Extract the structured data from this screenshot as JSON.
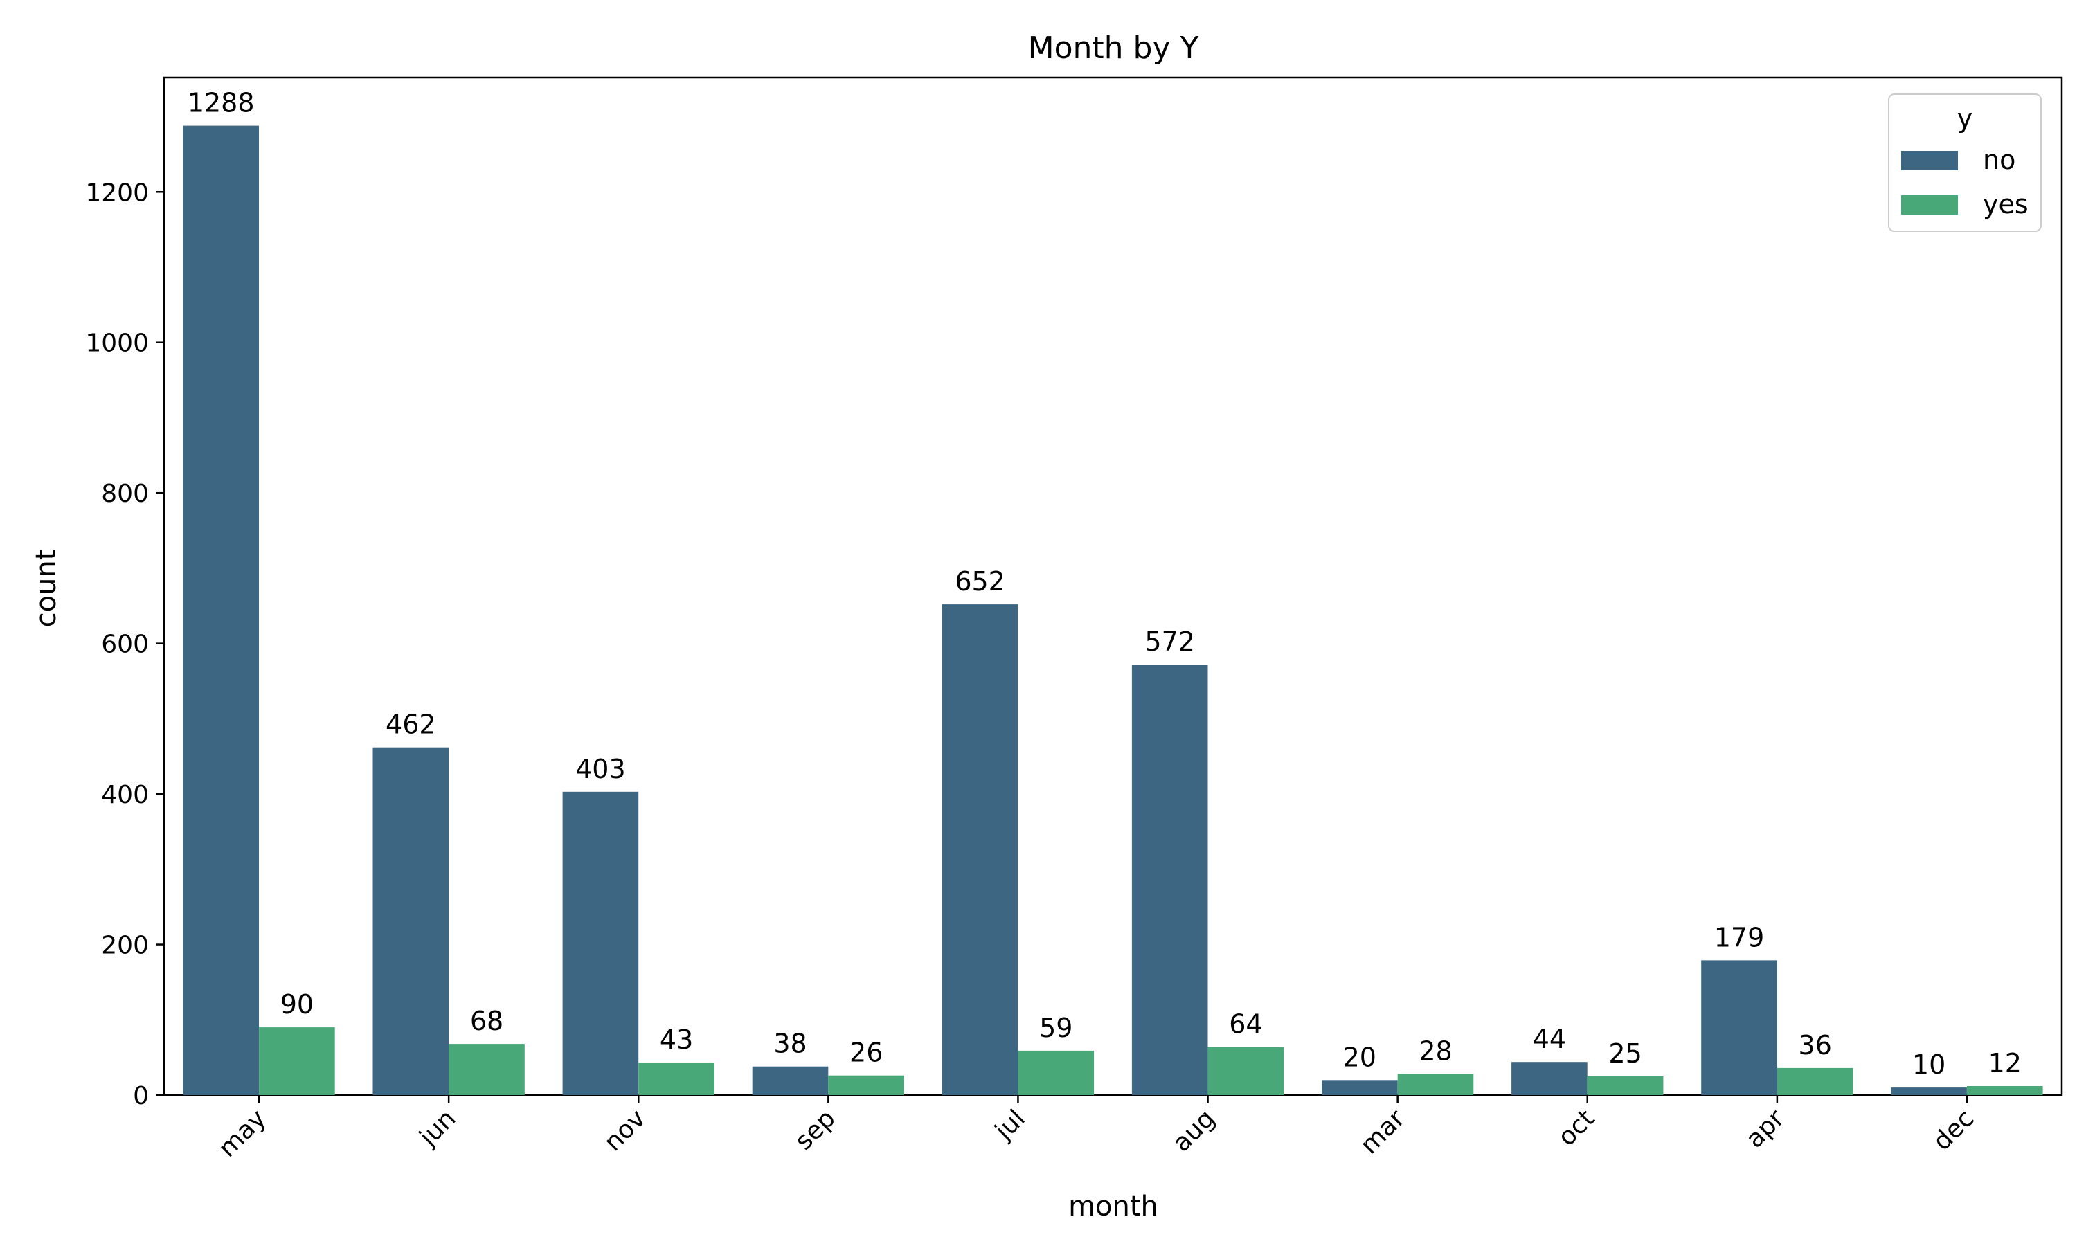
{
  "chart_data": {
    "type": "bar",
    "title": "Month by Y",
    "xlabel": "month",
    "ylabel": "count",
    "categories": [
      "may",
      "jun",
      "nov",
      "sep",
      "jul",
      "aug",
      "mar",
      "oct",
      "apr",
      "dec"
    ],
    "series": [
      {
        "name": "no",
        "color": "#3d6682",
        "values": [
          1288,
          462,
          403,
          38,
          652,
          572,
          20,
          44,
          179,
          10
        ]
      },
      {
        "name": "yes",
        "color": "#48a878",
        "values": [
          90,
          68,
          43,
          26,
          59,
          64,
          28,
          25,
          36,
          12
        ]
      }
    ],
    "ylim": [
      0,
      1352
    ],
    "yticks": [
      0,
      200,
      400,
      600,
      800,
      1000,
      1200
    ],
    "grid": false,
    "legend": {
      "title": "y",
      "placement": "top-right"
    },
    "bar_labels": true
  }
}
